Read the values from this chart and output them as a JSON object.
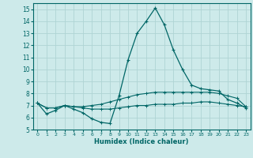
{
  "xlabel": "Humidex (Indice chaleur)",
  "xlim": [
    -0.5,
    23.5
  ],
  "ylim": [
    5,
    15.5
  ],
  "yticks": [
    5,
    6,
    7,
    8,
    9,
    10,
    11,
    12,
    13,
    14,
    15
  ],
  "xticks": [
    0,
    1,
    2,
    3,
    4,
    5,
    6,
    7,
    8,
    9,
    10,
    11,
    12,
    13,
    14,
    15,
    16,
    17,
    18,
    19,
    20,
    21,
    22,
    23
  ],
  "background_color": "#cdeaea",
  "grid_color": "#afd4d4",
  "line_color": "#006666",
  "line1_x": [
    0,
    1,
    2,
    3,
    4,
    5,
    6,
    7,
    8,
    9,
    10,
    11,
    12,
    13,
    14,
    15,
    16,
    17,
    18,
    19,
    20,
    21,
    22,
    23
  ],
  "line1_y": [
    7.2,
    6.3,
    6.6,
    7.0,
    6.7,
    6.4,
    5.9,
    5.6,
    5.5,
    7.8,
    10.8,
    13.0,
    14.0,
    15.1,
    13.7,
    11.6,
    10.0,
    8.7,
    8.4,
    8.3,
    8.2,
    7.5,
    7.2,
    6.8
  ],
  "line2_x": [
    0,
    1,
    2,
    3,
    4,
    5,
    6,
    7,
    8,
    9,
    10,
    11,
    12,
    13,
    14,
    15,
    16,
    17,
    18,
    19,
    20,
    21,
    22,
    23
  ],
  "line2_y": [
    7.2,
    6.8,
    6.8,
    7.0,
    6.9,
    6.9,
    7.0,
    7.1,
    7.3,
    7.5,
    7.7,
    7.9,
    8.0,
    8.1,
    8.1,
    8.1,
    8.1,
    8.1,
    8.1,
    8.1,
    8.0,
    7.8,
    7.6,
    6.9
  ],
  "line3_x": [
    0,
    1,
    2,
    3,
    4,
    5,
    6,
    7,
    8,
    9,
    10,
    11,
    12,
    13,
    14,
    15,
    16,
    17,
    18,
    19,
    20,
    21,
    22,
    23
  ],
  "line3_y": [
    7.2,
    6.8,
    6.8,
    7.0,
    6.9,
    6.8,
    6.7,
    6.7,
    6.7,
    6.8,
    6.9,
    7.0,
    7.0,
    7.1,
    7.1,
    7.1,
    7.2,
    7.2,
    7.3,
    7.3,
    7.2,
    7.1,
    7.0,
    6.9
  ]
}
